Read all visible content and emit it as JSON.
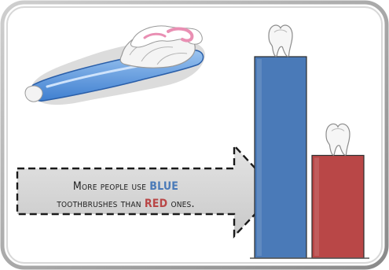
{
  "chart_data": {
    "type": "bar",
    "title": "",
    "xlabel": "",
    "ylabel": "",
    "categories": [
      "Blue",
      "Red"
    ],
    "series": [
      {
        "values": [
          100,
          51
        ]
      }
    ],
    "ylim": [
      0,
      100
    ],
    "grid": false,
    "legend": "none",
    "colors": {
      "Blue": "#4a7ab8",
      "Red": "#b94747"
    }
  },
  "callout": {
    "line1_start": "More people use ",
    "line1_highlight": "BLUE",
    "line2_start": "toothbrushes than ",
    "line2_highlight": "RED",
    "line2_end": " ones.",
    "blue_color": "#4a7ab8",
    "red_color": "#b94747"
  },
  "icons": {
    "toothbrush": "toothbrush-icon",
    "tooth": "tooth-icon"
  }
}
